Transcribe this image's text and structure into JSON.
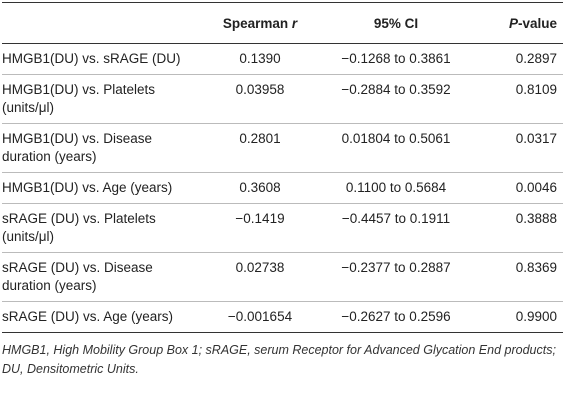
{
  "table": {
    "header": [
      [
        {
          "t": "Spearman "
        },
        {
          "t": "r",
          "italic": true
        }
      ],
      [
        {
          "t": "95% CI"
        }
      ],
      [
        {
          "t": "P",
          "italic": true
        },
        {
          "t": "-value"
        }
      ]
    ],
    "rows": [
      [
        "HMGB1(DU) vs. sRAGE (DU)",
        "0.1390",
        "−0.1268 to 0.3861",
        "0.2897"
      ],
      [
        "HMGB1(DU) vs. Platelets (units/μl)",
        "0.03958",
        "−0.2884 to 0.3592",
        "0.8109"
      ],
      [
        "HMGB1(DU) vs. Disease duration (years)",
        "0.2801",
        "0.01804 to 0.5061",
        "0.0317"
      ],
      [
        "HMGB1(DU) vs. Age (years)",
        "0.3608",
        "0.1100 to 0.5684",
        "0.0046"
      ],
      [
        "sRAGE (DU) vs. Platelets (units/μl)",
        "−0.1419",
        "−0.4457 to 0.1911",
        "0.3888"
      ],
      [
        "sRAGE (DU) vs. Disease duration (years)",
        "0.02738",
        "−0.2377 to 0.2887",
        "0.8369"
      ],
      [
        "sRAGE (DU) vs. Age (years)",
        "−0.001654",
        "−0.2627 to 0.2596",
        "0.9900"
      ]
    ]
  },
  "footnote": "HMGB1, High Mobility Group Box 1; sRAGE, serum Receptor for Advanced Glycation End products; DU, Densitometric Units."
}
